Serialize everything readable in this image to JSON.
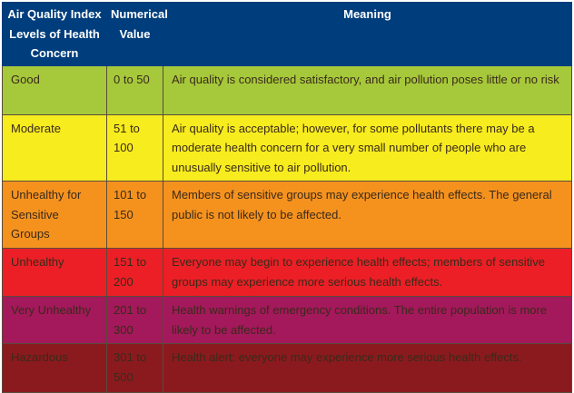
{
  "headers": [
    "Air Quality Index Levels of Health Concern",
    "Numerical Value",
    "Meaning"
  ],
  "rows": [
    {
      "level": "Good",
      "value": "0 to 50",
      "meaning": "Air quality is considered satisfactory, and air pollution poses little or no risk",
      "color": "#a6c93b"
    },
    {
      "level": "Moderate",
      "value": "51 to 100",
      "meaning": "Air quality is acceptable; however, for some pollutants there may be a moderate health concern for a very small number of people who are unusually sensitive to air pollution.",
      "color": "#f7ec1e"
    },
    {
      "level": "Unhealthy for Sensitive Groups",
      "value": "101 to 150",
      "meaning": "Members of sensitive groups may experience health effects. The general public is not likely to be affected.",
      "color": "#f5921e"
    },
    {
      "level": "Unhealthy",
      "value": "151 to 200",
      "meaning": "Everyone may begin to experience health effects; members of sensitive groups may experience more serious health effects.",
      "color": "#ec1f26"
    },
    {
      "level": "Very Unhealthy",
      "value": "201 to 300",
      "meaning": "Health warnings of emergency conditions. The entire population is more likely to be affected.",
      "color": "#a3195b"
    },
    {
      "level": "Hazardous",
      "value": "301 to 500",
      "meaning": "Health alert: everyone may experience more serious health effects.",
      "color": "#8b1a1e"
    }
  ]
}
